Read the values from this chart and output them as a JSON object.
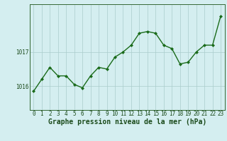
{
  "x": [
    0,
    1,
    2,
    3,
    4,
    5,
    6,
    7,
    8,
    9,
    10,
    11,
    12,
    13,
    14,
    15,
    16,
    17,
    18,
    19,
    20,
    21,
    22,
    23
  ],
  "y": [
    1015.85,
    1016.2,
    1016.55,
    1016.3,
    1016.3,
    1016.05,
    1015.95,
    1016.3,
    1016.55,
    1016.5,
    1016.85,
    1017.0,
    1017.2,
    1017.55,
    1017.6,
    1017.55,
    1017.2,
    1017.1,
    1016.65,
    1016.7,
    1017.0,
    1017.2,
    1017.2,
    1018.05
  ],
  "line_color": "#1a6b1a",
  "marker": "D",
  "marker_size": 2.0,
  "bg_color": "#d4eef0",
  "grid_color": "#aacccc",
  "xlabel": "Graphe pression niveau de la mer (hPa)",
  "xlabel_fontsize": 7,
  "yticks": [
    1016,
    1017
  ],
  "ylim": [
    1015.3,
    1018.4
  ],
  "xlim": [
    -0.5,
    23.5
  ],
  "line_width": 1.0,
  "tick_fontsize": 5.5,
  "spine_color": "#336633"
}
